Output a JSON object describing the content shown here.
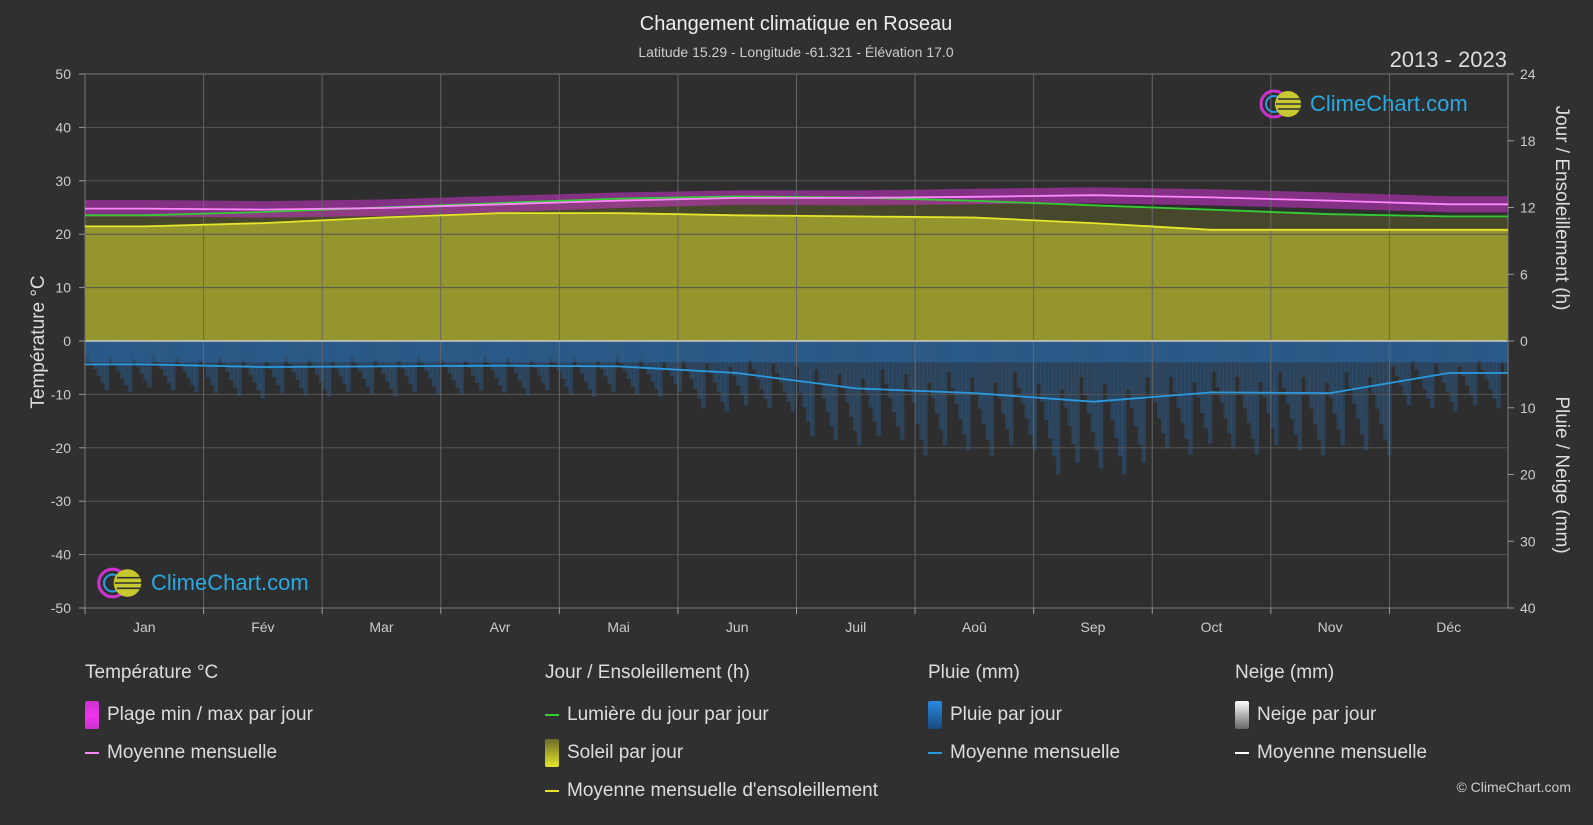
{
  "title": "Changement climatique en Roseau",
  "subtitle": "Latitude 15.29 - Longitude -61.321 - Élévation 17.0",
  "year_range": "2013 - 2023",
  "logo_text": "ClimeChart.com",
  "copyright": "© ClimeChart.com",
  "colors": {
    "background": "#303030",
    "temp_range": "#cc33cc",
    "temp_mean": "#ff88ff",
    "daylight": "#33cc33",
    "sunshine_fill": "#9a9a2e",
    "sunshine_mean": "#e6e62a",
    "rain": "#2a7ac8",
    "rain_mean": "#2a9ae0",
    "snow_mean": "#ffffff"
  },
  "legend": {
    "temperature": {
      "title": "Température °C",
      "range_label": "Plage min / max par jour",
      "mean_label": "Moyenne mensuelle"
    },
    "sun": {
      "title": "Jour / Ensoleillement (h)",
      "daylight_label": "Lumière du jour par jour",
      "sunshine_label": "Soleil par jour",
      "mean_label": "Moyenne mensuelle d'ensoleillement"
    },
    "rain": {
      "title": "Pluie (mm)",
      "daily_label": "Pluie par jour",
      "mean_label": "Moyenne mensuelle"
    },
    "snow": {
      "title": "Neige (mm)",
      "daily_label": "Neige par jour",
      "mean_label": "Moyenne mensuelle"
    }
  },
  "chart_data": {
    "type": "line",
    "categories": [
      "Jan",
      "Fév",
      "Mar",
      "Avr",
      "Mai",
      "Jun",
      "Juil",
      "Aoû",
      "Sep",
      "Oct",
      "Nov",
      "Déc"
    ],
    "y_left": {
      "label": "Température °C",
      "lim": [
        -50,
        50
      ],
      "ticks": [
        50,
        40,
        30,
        20,
        10,
        0,
        -10,
        -20,
        -30,
        -40,
        -50
      ]
    },
    "y_right_top": {
      "label": "Jour / Ensoleillement (h)",
      "lim": [
        0,
        24
      ],
      "ticks": [
        24,
        18,
        12,
        6,
        0
      ]
    },
    "y_right_bottom": {
      "label": "Pluie / Neige (mm)",
      "lim": [
        0,
        40
      ],
      "ticks": [
        0,
        10,
        20,
        30,
        40
      ]
    },
    "grid": true,
    "series": [
      {
        "name": "Moyenne mensuelle",
        "kind": "temperature_mean",
        "values": [
          24.8,
          24.6,
          24.9,
          25.6,
          26.3,
          26.8,
          26.8,
          27.0,
          27.3,
          26.9,
          26.3,
          25.6
        ]
      },
      {
        "name": "Plage min / max par jour",
        "kind": "temperature_range",
        "min": [
          23.3,
          23.1,
          23.4,
          24.1,
          24.9,
          25.5,
          25.4,
          25.6,
          25.8,
          25.4,
          24.8,
          24.1
        ],
        "max": [
          26.4,
          26.2,
          26.5,
          27.2,
          27.8,
          28.2,
          28.2,
          28.5,
          28.8,
          28.4,
          27.8,
          27.1
        ]
      },
      {
        "name": "Lumière du jour par jour",
        "kind": "daylight_hours",
        "values": [
          11.3,
          11.6,
          12.0,
          12.4,
          12.8,
          13.0,
          12.9,
          12.6,
          12.2,
          11.8,
          11.4,
          11.2
        ]
      },
      {
        "name": "Moyenne mensuelle d'ensoleillement",
        "kind": "sunshine_hours",
        "values": [
          10.3,
          10.6,
          11.1,
          11.5,
          11.5,
          11.3,
          11.2,
          11.1,
          10.6,
          10.0,
          10.0,
          10.0
        ]
      },
      {
        "name": "Moyenne mensuelle",
        "kind": "rain_mm",
        "values": [
          3.5,
          3.9,
          3.8,
          3.7,
          3.8,
          4.8,
          7.1,
          7.8,
          9.1,
          7.7,
          7.8,
          4.8
        ]
      }
    ]
  }
}
